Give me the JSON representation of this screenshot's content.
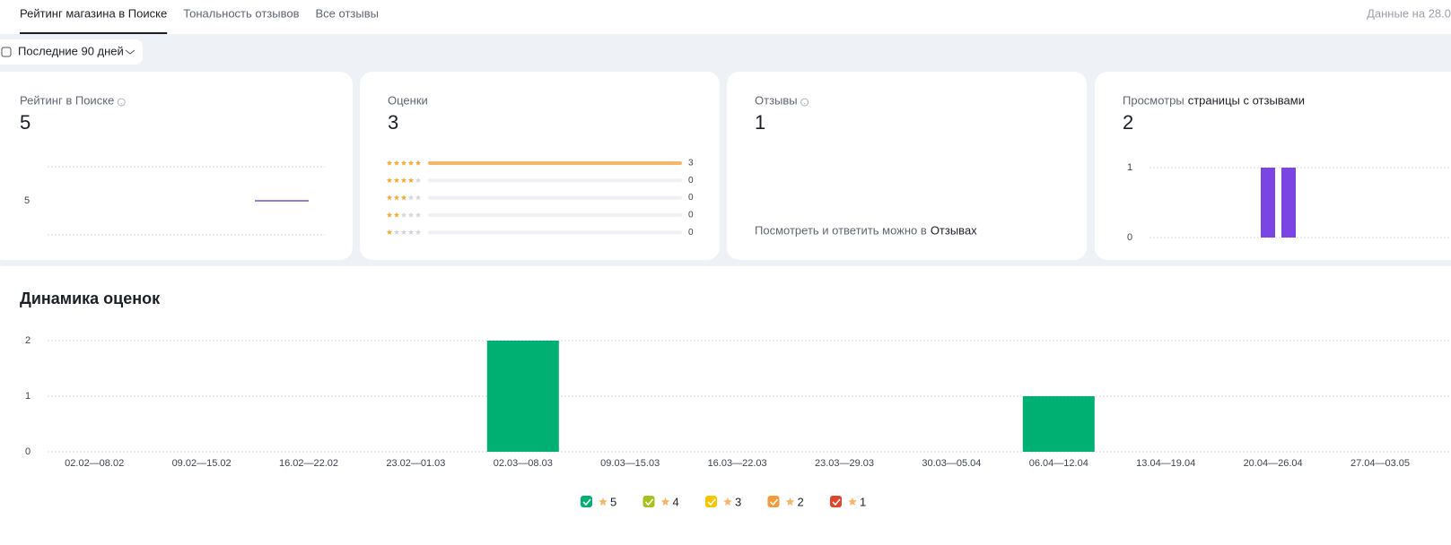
{
  "tabs": [
    "Рейтинг магазина в Поиске",
    "Тональность отзывов",
    "Все отзывы"
  ],
  "data_date": "Данные на 28.0",
  "period": "Последние 90 дней",
  "cards": [
    {
      "title": "Рейтинг в Поиске",
      "help": true,
      "value": 5,
      "chart": {
        "type": "line",
        "values": [
          5
        ],
        "ylim": [
          4,
          6
        ],
        "yticks": [
          5
        ],
        "color": "#7a4fe0"
      }
    },
    {
      "title": "Оценки",
      "value": 3,
      "rating_rows": {
        "stars": [
          5,
          4,
          3,
          2,
          1
        ],
        "counts": [
          3,
          0,
          0,
          0,
          0
        ],
        "xlim": [
          0,
          3
        ],
        "color": "#f5b56a"
      }
    },
    {
      "title": "Отзывы",
      "help": true,
      "value": 1,
      "note": "Посмотреть и ответить можно в",
      "link": "Отзывах"
    },
    {
      "title_muted": "Просмотры",
      "title": "страницы с отзывами",
      "value": 2,
      "chart": {
        "type": "bar",
        "values": [
          1,
          1
        ],
        "ylim": [
          0,
          1
        ],
        "yticks": [
          0,
          1
        ],
        "color": "#7b45e3"
      }
    }
  ],
  "chart_data": {
    "type": "bar",
    "stacked": true,
    "title": "Динамика оценок",
    "categories": [
      "02.02—08.02",
      "09.02—15.02",
      "16.02—22.02",
      "23.02—01.03",
      "02.03—08.03",
      "09.03—15.03",
      "16.03—22.03",
      "23.03—29.03",
      "30.03—05.04",
      "06.04—12.04",
      "13.04—19.04",
      "20.04—26.04",
      "27.04—03.05"
    ],
    "series": [
      {
        "name": "5",
        "color": "#00b073",
        "values": [
          0,
          0,
          0,
          0,
          2,
          0,
          0,
          0,
          0,
          1,
          0,
          0,
          0
        ]
      },
      {
        "name": "4",
        "color": "#a3c31a",
        "values": [
          0,
          0,
          0,
          0,
          0,
          0,
          0,
          0,
          0,
          0,
          0,
          0,
          0
        ]
      },
      {
        "name": "3",
        "color": "#f7c600",
        "values": [
          0,
          0,
          0,
          0,
          0,
          0,
          0,
          0,
          0,
          0,
          0,
          0,
          0
        ]
      },
      {
        "name": "2",
        "color": "#f59a3b",
        "values": [
          0,
          0,
          0,
          0,
          0,
          0,
          0,
          0,
          0,
          0,
          0,
          0,
          0
        ]
      },
      {
        "name": "1",
        "color": "#e0442c",
        "values": [
          0,
          0,
          0,
          0,
          0,
          0,
          0,
          0,
          0,
          0,
          0,
          0,
          0
        ]
      }
    ],
    "ylim": [
      0,
      2
    ],
    "yticks": [
      0,
      1,
      2
    ],
    "grid": true
  }
}
